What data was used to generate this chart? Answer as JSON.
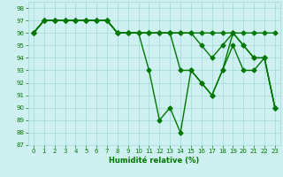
{
  "title": "",
  "xlabel": "Humidité relative (%)",
  "ylabel": "",
  "xlim": [
    -0.5,
    23.5
  ],
  "ylim": [
    87,
    98.5
  ],
  "yticks": [
    87,
    88,
    89,
    90,
    91,
    92,
    93,
    94,
    95,
    96,
    97,
    98
  ],
  "xticks": [
    0,
    1,
    2,
    3,
    4,
    5,
    6,
    7,
    8,
    9,
    10,
    11,
    12,
    13,
    14,
    15,
    16,
    17,
    18,
    19,
    20,
    21,
    22,
    23
  ],
  "background_color": "#cff0f0",
  "grid_color": "#a0d8d8",
  "line_color": "#007700",
  "series": [
    [
      96,
      97,
      97,
      97,
      97,
      97,
      97,
      97,
      96,
      96,
      96,
      93,
      89,
      90,
      88,
      93,
      92,
      91,
      93,
      96,
      95,
      94,
      94,
      90
    ],
    [
      96,
      97,
      97,
      97,
      97,
      97,
      97,
      97,
      96,
      96,
      96,
      96,
      96,
      96,
      96,
      96,
      95,
      94,
      95,
      96,
      95,
      94,
      94,
      90
    ],
    [
      96,
      97,
      97,
      97,
      97,
      97,
      97,
      97,
      96,
      96,
      96,
      96,
      96,
      96,
      96,
      96,
      96,
      96,
      96,
      96,
      96,
      96,
      96,
      96
    ],
    [
      96,
      97,
      97,
      97,
      97,
      97,
      97,
      97,
      96,
      96,
      96,
      96,
      96,
      96,
      93,
      93,
      92,
      91,
      93,
      95,
      93,
      93,
      94,
      90
    ]
  ],
  "marker": "D",
  "markersize": 2.5,
  "linewidth": 1.0
}
